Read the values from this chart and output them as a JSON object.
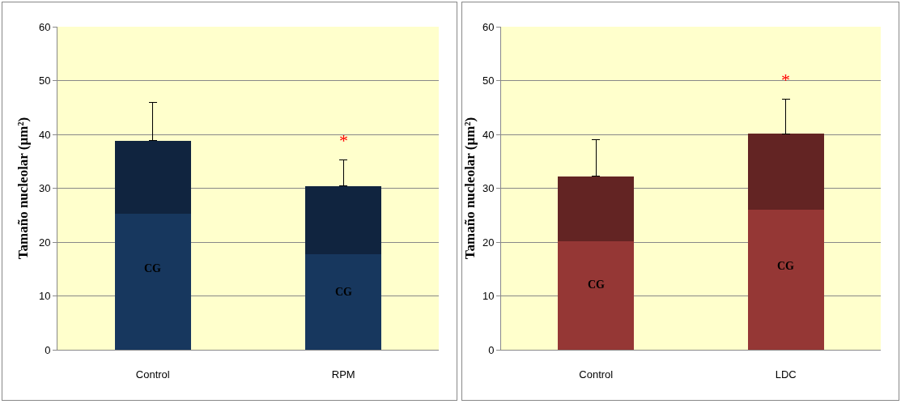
{
  "chart_data": [
    {
      "type": "bar",
      "stacked": true,
      "ylabel": "Tamaño nucleolar (µm²)",
      "categories": [
        "Control",
        "RPM"
      ],
      "ylim": [
        0,
        60
      ],
      "yticks": [
        0,
        10,
        20,
        30,
        40,
        50,
        60
      ],
      "grid": "y",
      "series": [
        {
          "color": "#17375e",
          "values": [
            25.3,
            17.8
          ]
        },
        {
          "color": "#10243f",
          "values": [
            13.5,
            12.6
          ],
          "errors": [
            [
              38.8,
              46.0
            ],
            [
              30.4,
              35.3
            ]
          ]
        }
      ],
      "annotations": [
        "CG",
        "CG",
        "*"
      ]
    },
    {
      "type": "bar",
      "stacked": true,
      "ylabel": "Tamaño nucleolar (µm²)",
      "categories": [
        "Control",
        "LDC"
      ],
      "ylim": [
        0,
        60
      ],
      "yticks": [
        0,
        10,
        20,
        30,
        40,
        50,
        60
      ],
      "grid": "y",
      "series": [
        {
          "color": "#953735",
          "values": [
            20.1,
            26.0
          ]
        },
        {
          "color": "#632423",
          "values": [
            12.1,
            14.1
          ],
          "errors": [
            [
              32.2,
              39.0
            ],
            [
              40.1,
              46.6
            ]
          ]
        }
      ],
      "annotations": [
        "CG",
        "CG",
        "*"
      ]
    }
  ]
}
